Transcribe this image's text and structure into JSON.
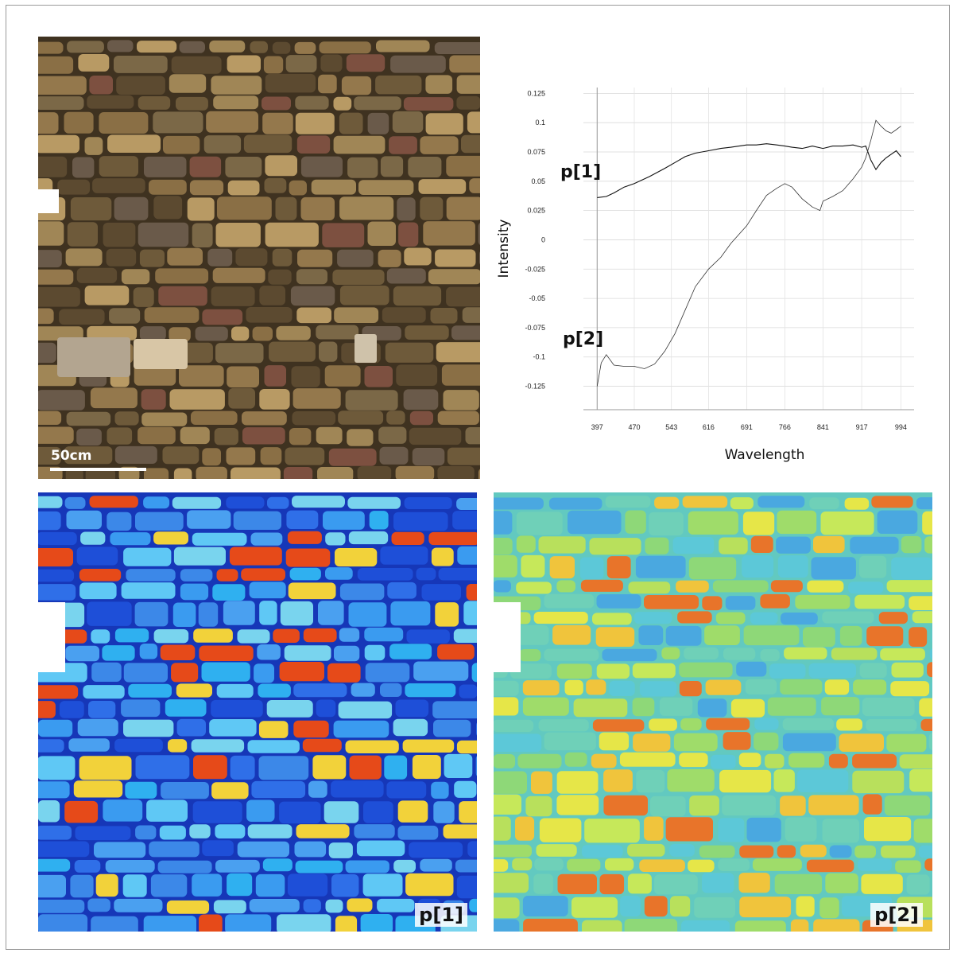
{
  "photo": {
    "scale_label": "50cm"
  },
  "maps": {
    "label_1": "p[1]",
    "label_2": "p[2]"
  },
  "chart_data": {
    "type": "line",
    "xlabel": "Wavelength",
    "ylabel": "Intensity",
    "x_ticks": [
      "397",
      "470",
      "543",
      "616",
      "691",
      "766",
      "841",
      "917",
      "994"
    ],
    "y_ticks": [
      "0.125",
      "0.1",
      "0.075",
      "0.05",
      "0.025",
      "0",
      "-0.025",
      "-0.05",
      "-0.075",
      "-0.1",
      "-0.125"
    ],
    "xlim": [
      370,
      1020
    ],
    "ylim": [
      -0.145,
      0.13
    ],
    "grid": "horizontal",
    "series": [
      {
        "name": "p[1]",
        "color": "#111111",
        "points": [
          [
            397,
            0.036
          ],
          [
            415,
            0.037
          ],
          [
            430,
            0.04
          ],
          [
            450,
            0.045
          ],
          [
            470,
            0.048
          ],
          [
            500,
            0.054
          ],
          [
            530,
            0.061
          ],
          [
            550,
            0.066
          ],
          [
            570,
            0.071
          ],
          [
            590,
            0.074
          ],
          [
            616,
            0.076
          ],
          [
            640,
            0.078
          ],
          [
            660,
            0.079
          ],
          [
            691,
            0.081
          ],
          [
            710,
            0.081
          ],
          [
            730,
            0.082
          ],
          [
            750,
            0.081
          ],
          [
            766,
            0.08
          ],
          [
            780,
            0.079
          ],
          [
            800,
            0.078
          ],
          [
            820,
            0.08
          ],
          [
            841,
            0.078
          ],
          [
            860,
            0.08
          ],
          [
            880,
            0.08
          ],
          [
            900,
            0.081
          ],
          [
            917,
            0.079
          ],
          [
            925,
            0.08
          ],
          [
            935,
            0.068
          ],
          [
            945,
            0.06
          ],
          [
            955,
            0.066
          ],
          [
            965,
            0.07
          ],
          [
            975,
            0.073
          ],
          [
            985,
            0.076
          ],
          [
            994,
            0.071
          ]
        ]
      },
      {
        "name": "p[2]",
        "color": "#333333",
        "points": [
          [
            397,
            -0.125
          ],
          [
            405,
            -0.105
          ],
          [
            415,
            -0.098
          ],
          [
            430,
            -0.107
          ],
          [
            450,
            -0.108
          ],
          [
            470,
            -0.108
          ],
          [
            490,
            -0.11
          ],
          [
            510,
            -0.106
          ],
          [
            530,
            -0.095
          ],
          [
            550,
            -0.08
          ],
          [
            570,
            -0.06
          ],
          [
            590,
            -0.04
          ],
          [
            616,
            -0.025
          ],
          [
            640,
            -0.015
          ],
          [
            660,
            -0.003
          ],
          [
            691,
            0.012
          ],
          [
            710,
            0.025
          ],
          [
            730,
            0.038
          ],
          [
            750,
            0.044
          ],
          [
            766,
            0.048
          ],
          [
            780,
            0.045
          ],
          [
            800,
            0.035
          ],
          [
            820,
            0.028
          ],
          [
            835,
            0.025
          ],
          [
            841,
            0.033
          ],
          [
            860,
            0.037
          ],
          [
            880,
            0.042
          ],
          [
            900,
            0.052
          ],
          [
            917,
            0.062
          ],
          [
            925,
            0.07
          ],
          [
            935,
            0.085
          ],
          [
            945,
            0.102
          ],
          [
            955,
            0.097
          ],
          [
            965,
            0.093
          ],
          [
            975,
            0.091
          ],
          [
            985,
            0.094
          ],
          [
            994,
            0.097
          ]
        ]
      }
    ]
  }
}
